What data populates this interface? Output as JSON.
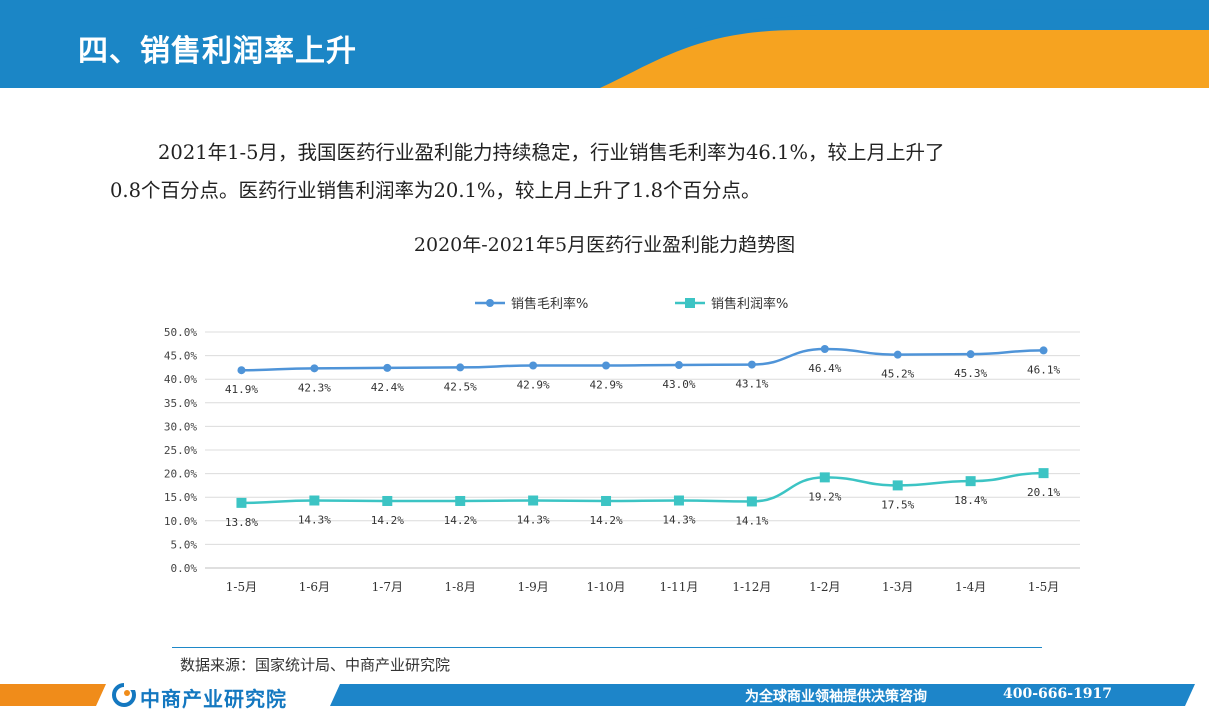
{
  "header": {
    "title": "四、销售利润率上升"
  },
  "intro": {
    "line1": "2021年1-5月，我国医药行业盈利能力持续稳定，行业销售毛利率为46.1%，较上月上升了",
    "line2": "0.8个百分点。医药行业销售利润率为20.1%，较上月上升了1.8个百分点。"
  },
  "chart_data": {
    "type": "line",
    "title": "2020年-2021年5月医药行业盈利能力趋势图",
    "categories": [
      "1-5月",
      "1-6月",
      "1-7月",
      "1-8月",
      "1-9月",
      "1-10月",
      "1-11月",
      "1-12月",
      "1-2月",
      "1-3月",
      "1-4月",
      "1-5月"
    ],
    "series": [
      {
        "name": "销售毛利率%",
        "color": "#4f94d8",
        "marker": "circle",
        "values": [
          41.9,
          42.3,
          42.4,
          42.5,
          42.9,
          42.9,
          43.0,
          43.1,
          46.4,
          45.2,
          45.3,
          46.1
        ],
        "labels": [
          "41.9%",
          "42.3%",
          "42.4%",
          "42.5%",
          "42.9%",
          "42.9%",
          "43.0%",
          "43.1%",
          "46.4%",
          "45.2%",
          "45.3%",
          "46.1%"
        ]
      },
      {
        "name": "销售利润率%",
        "color": "#3cc4c4",
        "marker": "square",
        "values": [
          13.8,
          14.3,
          14.2,
          14.2,
          14.3,
          14.2,
          14.3,
          14.1,
          19.2,
          17.5,
          18.4,
          20.1
        ],
        "labels": [
          "13.8%",
          "14.3%",
          "14.2%",
          "14.2%",
          "14.3%",
          "14.2%",
          "14.3%",
          "14.1%",
          "19.2%",
          "17.5%",
          "18.4%",
          "20.1%"
        ]
      }
    ],
    "ylim": [
      0,
      50
    ],
    "yticks": [
      0,
      5,
      10,
      15,
      20,
      25,
      30,
      35,
      40,
      45,
      50
    ],
    "ytick_labels": [
      "0.0%",
      "5.0%",
      "10.0%",
      "15.0%",
      "20.0%",
      "25.0%",
      "30.0%",
      "35.0%",
      "40.0%",
      "45.0%",
      "50.0%"
    ],
    "grid": true,
    "legend": "top-center"
  },
  "source": "数据来源：国家统计局、中商产业研究院",
  "footer": {
    "brand": "中商产业研究院",
    "slogan": "为全球商业领袖提供决策咨询",
    "phone": "400-666-1917"
  },
  "colors": {
    "header_blue": "#1b86c6",
    "header_orange": "#f6a320",
    "footer_orange": "#f08c1a",
    "footer_blue": "#1d85c9"
  }
}
